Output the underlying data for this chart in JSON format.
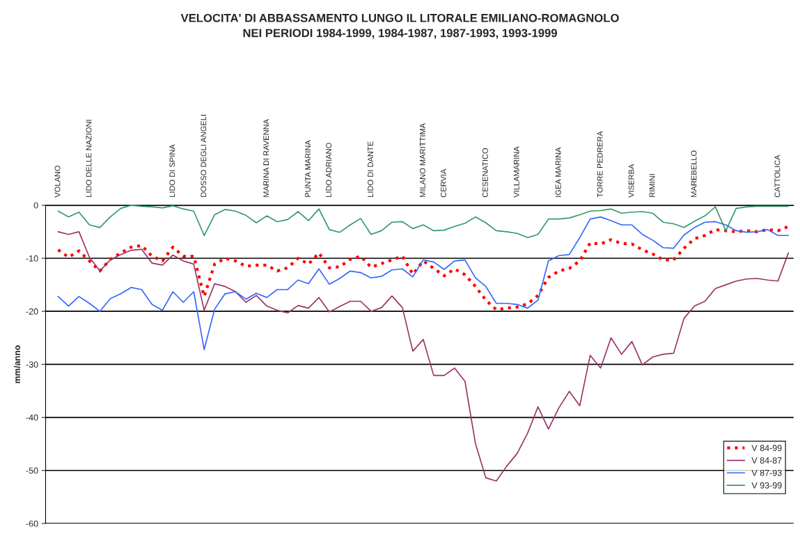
{
  "chart_data": {
    "type": "line",
    "title": "VELOCITA' DI ABBASSAMENTO LUNGO IL LITORALE EMILIANO-ROMAGNOLO\nNEI PERIODI 1984-1999, 1984-1987, 1987-1993, 1993-1999",
    "ylabel": "mm/anno",
    "categories": [
      "VOLANO",
      null,
      null,
      "LIDO DELLE NAZIONI",
      null,
      null,
      null,
      null,
      null,
      null,
      null,
      "LIDO DI SPINA",
      null,
      null,
      "DOSSO DEGLI ANGELI",
      null,
      null,
      null,
      null,
      null,
      "MARINA DI RAVENNA",
      null,
      null,
      null,
      "PUNTA MARINA",
      null,
      "LIDO ADRIANO",
      null,
      null,
      null,
      "LIDO DI DANTE",
      null,
      null,
      null,
      null,
      "MILANO MARITTIMA",
      null,
      "CERVIA",
      null,
      null,
      null,
      "CESENATICO",
      null,
      null,
      "VILLAMARINA",
      null,
      null,
      null,
      "IGEA MARINA",
      null,
      null,
      null,
      "TORRE PEDRERA",
      null,
      null,
      "VISERBA",
      null,
      "RIMINI",
      null,
      null,
      null,
      "MAREBELLO",
      null,
      null,
      null,
      null,
      null,
      null,
      null,
      "CATTOLICA",
      null
    ],
    "series": [
      {
        "name": "V 84-99",
        "color": "#ff0000",
        "line_style": "dotted",
        "values": [
          -8.4,
          -9.8,
          -8.6,
          -10.5,
          -12.4,
          -10.2,
          -9.0,
          -7.9,
          -7.6,
          -9.6,
          -10.5,
          -7.9,
          -9.6,
          -9.6,
          -17.2,
          -11.1,
          -10.0,
          -10.5,
          -11.5,
          -11.3,
          -11.3,
          -12.4,
          -11.8,
          -10.0,
          -11.1,
          -9.0,
          -11.8,
          -11.6,
          -10.2,
          -9.6,
          -11.7,
          -11.0,
          -10.3,
          -9.6,
          -13.0,
          -10.5,
          -11.9,
          -13.3,
          -12.0,
          -13.1,
          -15.3,
          -17.9,
          -19.7,
          -19.4,
          -19.2,
          -18.6,
          -17.0,
          -13.6,
          -12.4,
          -11.9,
          -10.5,
          -7.1,
          -7.3,
          -6.5,
          -7.2,
          -7.3,
          -8.4,
          -9.2,
          -10.3,
          -10.3,
          -8.1,
          -6.3,
          -5.7,
          -4.6,
          -4.8,
          -5.0,
          -4.8,
          -5.0,
          -4.6,
          -4.8,
          -4.0
        ]
      },
      {
        "name": "V 84-87",
        "color": "#993366",
        "line_style": "solid",
        "values": [
          -5.0,
          -5.5,
          -5.0,
          -9.8,
          -12.4,
          -10.3,
          -9.3,
          -8.5,
          -8.3,
          -10.9,
          -11.3,
          -9.4,
          -10.5,
          -11.1,
          -19.8,
          -14.8,
          -15.3,
          -16.3,
          -18.3,
          -17.0,
          -19.0,
          -19.8,
          -20.3,
          -18.9,
          -19.4,
          -17.4,
          -20.1,
          -19.1,
          -18.1,
          -18.1,
          -20.0,
          -19.3,
          -17.1,
          -19.3,
          -27.5,
          -25.3,
          -32.1,
          -32.1,
          -30.7,
          -33.2,
          -44.9,
          -51.4,
          -52.0,
          -49.2,
          -46.8,
          -43.0,
          -38.0,
          -42.2,
          -38.2,
          -35.1,
          -37.8,
          -28.3,
          -30.7,
          -25.0,
          -28.1,
          -25.7,
          -30.1,
          -28.6,
          -28.1,
          -27.9,
          -21.3,
          -19.0,
          -18.1,
          -15.7,
          -15.0,
          -14.3,
          -13.9,
          -13.8,
          -14.1,
          -14.3,
          -9.0
        ]
      },
      {
        "name": "V 87-93",
        "color": "#3366ff",
        "line_style": "solid",
        "values": [
          -17.2,
          -19.0,
          -17.2,
          -18.5,
          -20.0,
          -17.6,
          -16.7,
          -15.5,
          -15.9,
          -18.7,
          -19.8,
          -16.3,
          -18.3,
          -16.3,
          -27.2,
          -19.6,
          -16.7,
          -16.3,
          -17.7,
          -16.6,
          -17.4,
          -15.9,
          -15.9,
          -14.1,
          -14.8,
          -12.0,
          -14.9,
          -13.8,
          -12.4,
          -12.7,
          -13.7,
          -13.4,
          -12.2,
          -12.0,
          -13.5,
          -10.3,
          -10.7,
          -12.1,
          -10.5,
          -10.3,
          -13.7,
          -15.3,
          -18.5,
          -18.5,
          -18.7,
          -19.4,
          -17.9,
          -10.5,
          -9.5,
          -9.3,
          -6.1,
          -2.6,
          -2.2,
          -2.9,
          -3.7,
          -3.7,
          -5.5,
          -6.6,
          -8.0,
          -8.1,
          -5.6,
          -4.2,
          -3.2,
          -3.1,
          -3.7,
          -4.8,
          -5.1,
          -5.0,
          -4.6,
          -5.7,
          -5.7
        ]
      },
      {
        "name": "V 93-99",
        "color": "#339966",
        "line_style": "solid",
        "values": [
          -1.1,
          -2.2,
          -1.3,
          -3.7,
          -4.2,
          -2.2,
          -0.6,
          0,
          -0.2,
          -0.3,
          -0.5,
          -0.1,
          -0.7,
          -1.1,
          -5.7,
          -1.8,
          -0.8,
          -1.1,
          -1.9,
          -3.3,
          -2.0,
          -3.1,
          -2.7,
          -1.2,
          -2.9,
          -0.7,
          -4.6,
          -5.1,
          -3.7,
          -2.5,
          -5.5,
          -4.8,
          -3.2,
          -3.1,
          -4.4,
          -3.7,
          -4.8,
          -4.7,
          -4.0,
          -3.4,
          -2.2,
          -3.3,
          -4.8,
          -5.0,
          -5.3,
          -6.1,
          -5.5,
          -2.6,
          -2.6,
          -2.4,
          -1.8,
          -1.1,
          -1.0,
          -0.7,
          -1.5,
          -1.3,
          -1.2,
          -1.5,
          -3.2,
          -3.5,
          -4.2,
          -3.0,
          -2.0,
          -0.3,
          -4.8,
          -0.6,
          -0.3,
          -0.2,
          -0.2,
          -0.2,
          -0.2
        ]
      }
    ],
    "ylim": [
      -60,
      0
    ],
    "yticks": [
      0,
      -10,
      -20,
      -30,
      -40,
      -50,
      -60
    ],
    "grid": "y",
    "legend": "bottom right"
  }
}
